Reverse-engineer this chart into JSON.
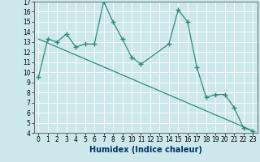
{
  "xlabel": "Humidex (Indice chaleur)",
  "line1_x": [
    0,
    1,
    2,
    3,
    4,
    5,
    6,
    7,
    8,
    9,
    10,
    11,
    14,
    15,
    16,
    17,
    18,
    19,
    20,
    21,
    22,
    23
  ],
  "line1_y": [
    9.5,
    13.3,
    13.0,
    13.8,
    12.5,
    12.8,
    12.8,
    17.0,
    15.0,
    13.3,
    11.5,
    10.8,
    12.8,
    16.2,
    15.0,
    10.5,
    7.5,
    7.8,
    7.8,
    6.5,
    4.5,
    4.2
  ],
  "line2_x": [
    0,
    23
  ],
  "line2_y": [
    13.3,
    4.2
  ],
  "line_color": "#2e8b7a",
  "bg_color": "#cde8ec",
  "grid_color": "#ffffff",
  "xlim": [
    -0.5,
    23.5
  ],
  "ylim": [
    4,
    17
  ],
  "yticks": [
    4,
    5,
    6,
    7,
    8,
    9,
    10,
    11,
    12,
    13,
    14,
    15,
    16,
    17
  ],
  "xticks": [
    0,
    1,
    2,
    3,
    4,
    5,
    6,
    7,
    8,
    9,
    10,
    11,
    12,
    13,
    14,
    15,
    16,
    17,
    18,
    19,
    20,
    21,
    22,
    23
  ],
  "marker": "+",
  "markersize": 4,
  "linewidth": 0.9,
  "fontsize_label": 7,
  "fontsize_tick": 5.5,
  "label_color": "#003366"
}
